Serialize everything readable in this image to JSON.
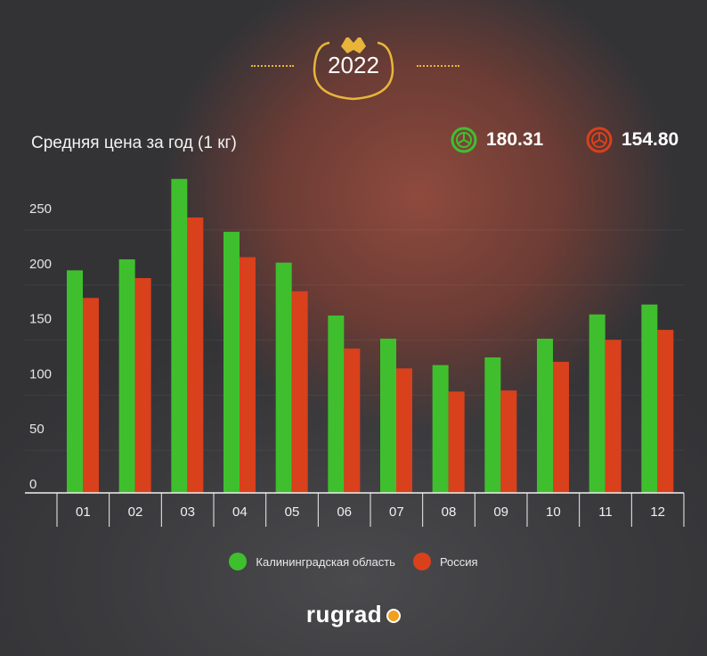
{
  "header": {
    "year": "2022",
    "avg_label": "Средняя цена за год (1 кг)",
    "avg_kaliningrad": "180.31",
    "avg_russia": "154.80"
  },
  "colors": {
    "green": "#3fbf2e",
    "red": "#d9401c",
    "gold": "#e8b53a"
  },
  "legend": {
    "kaliningrad": "Калининградская область",
    "russia": "Россия"
  },
  "brand": {
    "logo": "rugrad"
  },
  "chart_data": {
    "type": "bar",
    "categories": [
      "01",
      "02",
      "03",
      "04",
      "05",
      "06",
      "07",
      "08",
      "09",
      "10",
      "11",
      "12"
    ],
    "series": [
      {
        "name": "Калининградская область",
        "color": "#3fbf2e",
        "values": [
          202,
          212,
          285,
          237,
          209,
          161,
          140,
          116,
          123,
          140,
          162,
          171
        ]
      },
      {
        "name": "Россия",
        "color": "#d9401c",
        "values": [
          177,
          195,
          250,
          214,
          183,
          131,
          113,
          92,
          93,
          119,
          139,
          148
        ]
      }
    ],
    "yticks": [
      0,
      50,
      100,
      150,
      200,
      250
    ],
    "ylim": [
      0,
      300
    ],
    "grid": true
  }
}
